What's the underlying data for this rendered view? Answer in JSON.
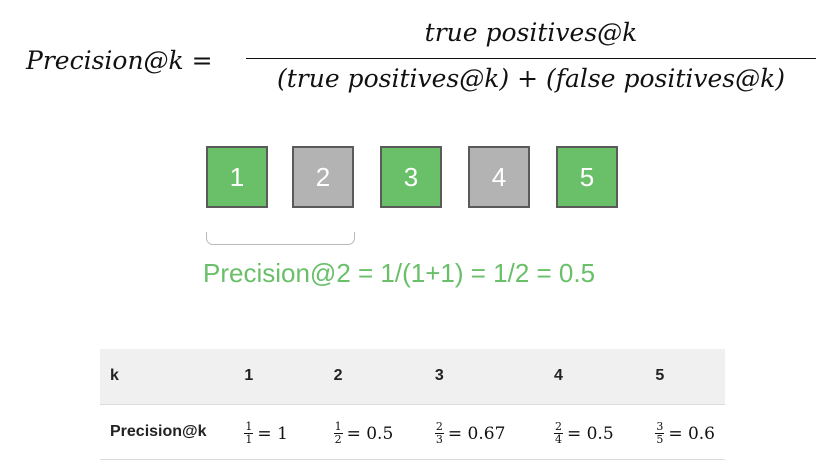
{
  "formula": {
    "lhs": "Precision@k =",
    "numerator": "true positives@k",
    "denominator": "(true positives@k) + (false positives@k)"
  },
  "items": [
    {
      "label": "1",
      "relevant": true
    },
    {
      "label": "2",
      "relevant": false
    },
    {
      "label": "3",
      "relevant": true
    },
    {
      "label": "4",
      "relevant": false
    },
    {
      "label": "5",
      "relevant": true
    }
  ],
  "calculation": "Precision@2 = 1/(1+1) = 1/2 = 0.5",
  "colors": {
    "relevant": "#6abf69",
    "not_relevant": "#b3b3b3",
    "calculation_text": "#6abf69"
  },
  "table": {
    "header": [
      "k",
      "1",
      "2",
      "3",
      "4",
      "5"
    ],
    "row_label": "Precision@k",
    "cells": [
      {
        "num": "1",
        "den": "1",
        "result": "= 1"
      },
      {
        "num": "1",
        "den": "2",
        "result": "= 0.5"
      },
      {
        "num": "2",
        "den": "3",
        "result": "= 0.67"
      },
      {
        "num": "2",
        "den": "4",
        "result": "= 0.5"
      },
      {
        "num": "3",
        "den": "5",
        "result": "= 0.6"
      }
    ]
  }
}
